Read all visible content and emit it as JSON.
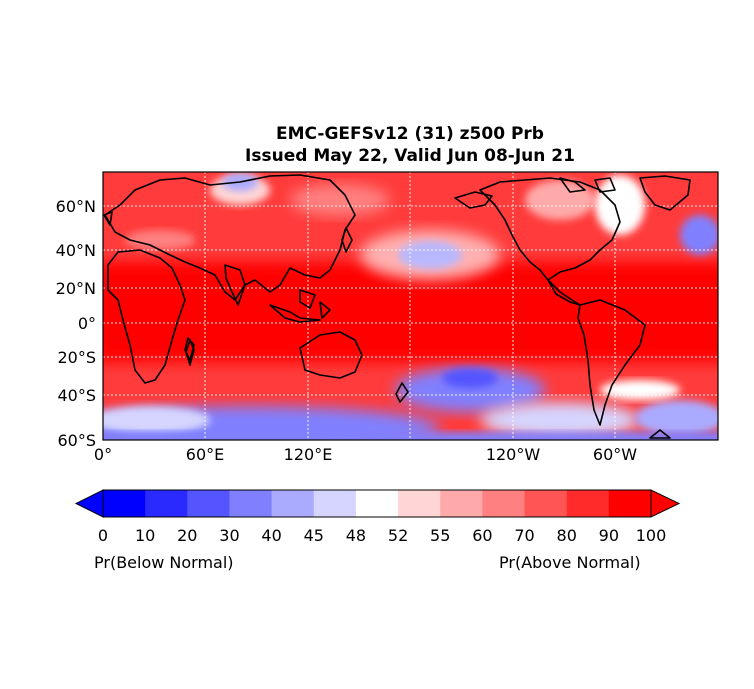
{
  "title": {
    "line1": "EMC-GEFSv12 (31) z500 Prb",
    "line2": "Issued May 22, Valid Jun 08-Jun 21"
  },
  "lat_labels": [
    "60°N",
    "40°N",
    "20°N",
    "0°",
    "20°S",
    "40°S",
    "60°S"
  ],
  "lon_labels": [
    "0°",
    "60°E",
    "120°E",
    "120°W",
    "60°W"
  ],
  "colorbar": {
    "ticks": [
      "0",
      "10",
      "20",
      "30",
      "40",
      "45",
      "48",
      "52",
      "55",
      "60",
      "70",
      "80",
      "90",
      "100"
    ],
    "colors": [
      "#0000ff",
      "#2a2aff",
      "#5555ff",
      "#8080ff",
      "#aaaaff",
      "#d5d5ff",
      "#ffffff",
      "#ffd5d5",
      "#ffaaaa",
      "#ff8080",
      "#ff5555",
      "#ff2a2a",
      "#ff0000"
    ],
    "left_label": "Pr(Below Normal)",
    "right_label": "Pr(Above Normal)"
  }
}
